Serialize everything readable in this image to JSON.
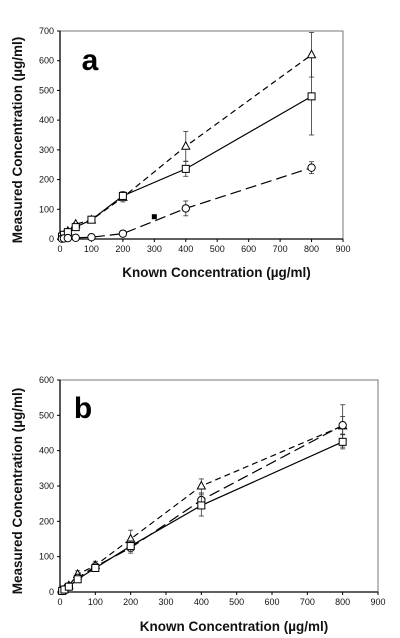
{
  "chart_data": [
    {
      "type": "line",
      "panel_label": "a",
      "xlabel": "Known Concentration (µg/ml)",
      "ylabel": "Measured Concentration (µg/ml)",
      "xlim": [
        0,
        900
      ],
      "ylim": [
        0,
        700
      ],
      "xticks": [
        0,
        100,
        200,
        300,
        400,
        500,
        600,
        700,
        800,
        900
      ],
      "yticks": [
        0,
        100,
        200,
        300,
        400,
        500,
        600,
        700
      ],
      "grid": false,
      "series": [
        {
          "marker": "triangle",
          "line": "short-dash",
          "x": [
            6.25,
            12.5,
            25,
            50,
            100,
            200,
            400,
            800
          ],
          "y": [
            8,
            13,
            26,
            50,
            64,
            140,
            312,
            620
          ],
          "err": [
            3,
            3,
            5,
            6,
            8,
            15,
            50,
            75
          ]
        },
        {
          "marker": "square",
          "line": "solid",
          "x": [
            6.25,
            12.5,
            25,
            50,
            100,
            200,
            400,
            800
          ],
          "y": [
            8,
            14,
            23,
            40,
            65,
            145,
            236,
            480
          ],
          "err": [
            3,
            3,
            5,
            6,
            10,
            15,
            25,
            130
          ]
        },
        {
          "marker": "circle",
          "line": "long-dash",
          "x": [
            6.25,
            12.5,
            25,
            50,
            100,
            200,
            400,
            800
          ],
          "y": [
            1,
            2,
            3,
            4,
            6,
            18,
            103,
            240
          ],
          "err": [
            1,
            1,
            1,
            2,
            3,
            6,
            25,
            20
          ]
        },
        {
          "marker": "filled-square",
          "line": "none",
          "x": [
            300
          ],
          "y": [
            75
          ],
          "err": [
            0
          ]
        }
      ]
    },
    {
      "type": "line",
      "panel_label": "b",
      "xlabel": "Known Concentration (µg/ml)",
      "ylabel": "Measured Concentration (µg/ml)",
      "xlim": [
        0,
        900
      ],
      "ylim": [
        0,
        600
      ],
      "xticks": [
        0,
        100,
        200,
        300,
        400,
        500,
        600,
        700,
        800,
        900
      ],
      "yticks": [
        0,
        100,
        200,
        300,
        400,
        500,
        600
      ],
      "grid": false,
      "series": [
        {
          "marker": "triangle",
          "line": "short-dash",
          "x": [
            6.25,
            12.5,
            25,
            50,
            100,
            200,
            400,
            800
          ],
          "y": [
            4,
            8,
            18,
            50,
            75,
            150,
            300,
            470
          ],
          "err": [
            3,
            4,
            6,
            10,
            12,
            25,
            20,
            60
          ]
        },
        {
          "marker": "circle",
          "line": "long-dash",
          "x": [
            6.25,
            12.5,
            25,
            50,
            100,
            200,
            400,
            800
          ],
          "y": [
            3,
            7,
            16,
            40,
            72,
            125,
            260,
            472
          ],
          "err": [
            3,
            4,
            6,
            8,
            10,
            15,
            20,
            25
          ]
        },
        {
          "marker": "square",
          "line": "solid",
          "x": [
            6.25,
            12.5,
            25,
            50,
            100,
            200,
            400,
            800
          ],
          "y": [
            3,
            7,
            15,
            36,
            68,
            130,
            245,
            425
          ],
          "err": [
            3,
            4,
            5,
            8,
            10,
            15,
            30,
            20
          ]
        }
      ]
    }
  ]
}
